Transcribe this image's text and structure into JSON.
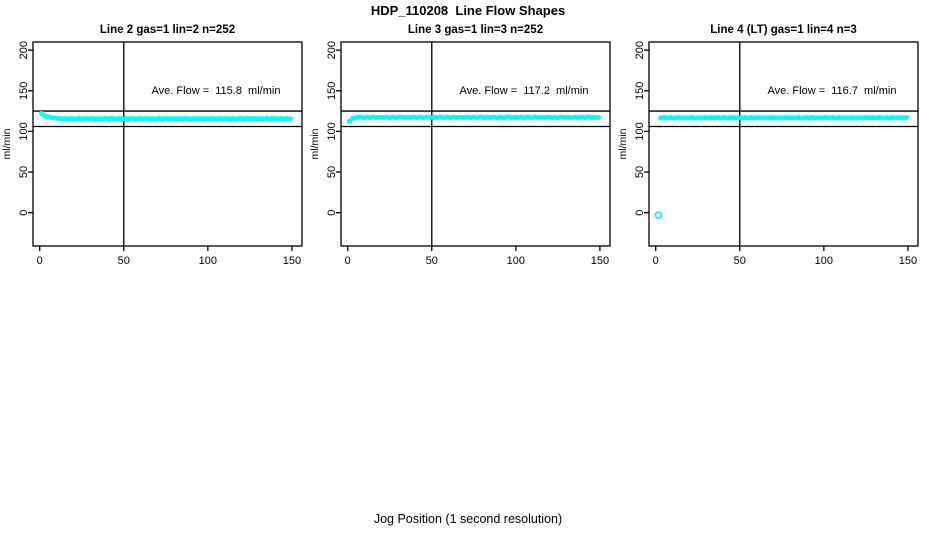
{
  "chart_data": {
    "type": "scatter",
    "title": "HDP_110208  Line Flow Shapes",
    "xlabel": "Jog Position (1 second resolution)",
    "ylabel": "ml/min",
    "x_ticks": [
      0,
      50,
      100,
      150
    ],
    "y_ticks": [
      0,
      50,
      100,
      150,
      200
    ],
    "xlim": [
      -4,
      156
    ],
    "ylim": [
      -41,
      210
    ],
    "grid": false,
    "point_color": "#00FFFF",
    "line_color": "#000000",
    "ref_lines": {
      "vertical_x": 50,
      "horizontal_upper": 125,
      "horizontal_lower": 106
    },
    "panels": [
      {
        "title": "Line 2 gas=1 lin=2 n=252",
        "n": 252,
        "ave_flow": 115.8,
        "annotation": "Ave. Flow =  115.8  ml/min",
        "series": {
          "x_start": 1,
          "x_step": 2,
          "y": [
            122.0,
            119.2,
            117.8,
            116.9,
            116.4,
            116.0,
            115.6,
            115.9,
            115.3,
            115.8,
            115.5,
            116.1,
            115.4,
            116.0,
            115.6,
            115.9,
            115.3,
            115.8,
            115.5,
            116.1,
            115.4,
            116.0,
            115.6,
            115.9,
            115.3,
            115.8,
            115.5,
            116.1,
            115.4,
            116.0,
            115.6,
            115.9,
            115.3,
            115.8,
            115.5,
            116.1,
            115.4,
            116.0,
            115.6,
            115.9,
            115.3,
            115.8,
            115.5,
            116.1,
            115.4,
            116.0,
            115.6,
            115.9,
            115.3,
            115.8,
            115.5,
            116.1,
            115.4,
            116.0,
            115.6,
            115.9,
            115.3,
            115.8,
            115.5,
            116.1,
            115.4,
            116.0,
            115.6,
            115.9,
            115.3,
            115.8,
            115.5,
            116.1,
            115.4,
            116.0,
            115.6,
            115.9,
            115.3,
            115.8,
            115.5
          ]
        }
      },
      {
        "title": "Line 3 gas=1 lin=3 n=252",
        "n": 252,
        "ave_flow": 117.2,
        "annotation": "Ave. Flow =  117.2  ml/min",
        "series": {
          "x_start": 1,
          "x_step": 2,
          "y": [
            112.5,
            116.2,
            117.0,
            117.5,
            116.8,
            117.4,
            116.9,
            117.6,
            117.1,
            117.3,
            117.0,
            117.5,
            116.8,
            117.4,
            116.9,
            117.6,
            117.1,
            117.3,
            117.0,
            117.5,
            116.8,
            117.4,
            116.9,
            117.6,
            117.1,
            117.3,
            117.0,
            117.5,
            116.8,
            117.4,
            116.9,
            117.6,
            117.1,
            117.3,
            117.0,
            117.5,
            116.8,
            117.4,
            116.9,
            117.6,
            117.1,
            117.3,
            117.0,
            117.5,
            116.8,
            117.4,
            116.9,
            117.6,
            117.1,
            117.3,
            117.0,
            117.5,
            116.8,
            117.4,
            116.9,
            117.6,
            117.1,
            117.3,
            117.0,
            117.5,
            116.8,
            117.4,
            116.9,
            117.6,
            117.1,
            117.3,
            117.0,
            117.5,
            116.8,
            117.4,
            116.9,
            117.6,
            117.1,
            117.3,
            117.0
          ]
        }
      },
      {
        "title": "Line 4 (LT) gas=1 lin=4 n=3",
        "n": 3,
        "ave_flow": 116.7,
        "annotation": "Ave. Flow =  116.7  ml/min",
        "outlier": {
          "x": 1.5,
          "y": -3
        },
        "series": {
          "x_start": 3,
          "x_step": 2,
          "y": [
            116.6,
            117.1,
            116.4,
            117.0,
            116.5,
            117.2,
            116.7,
            116.9,
            116.6,
            117.1,
            116.4,
            117.0,
            116.5,
            117.2,
            116.7,
            116.9,
            116.6,
            117.1,
            116.4,
            117.0,
            116.5,
            117.2,
            116.7,
            116.9,
            116.6,
            117.1,
            116.4,
            117.0,
            116.5,
            117.2,
            116.7,
            116.9,
            116.6,
            117.1,
            116.4,
            117.0,
            116.5,
            117.2,
            116.7,
            116.9,
            116.6,
            117.1,
            116.4,
            117.0,
            116.5,
            117.2,
            116.7,
            116.9,
            116.6,
            117.1,
            116.4,
            117.0,
            116.5,
            117.2,
            116.7,
            116.9,
            116.6,
            117.1,
            116.4,
            117.0,
            116.5,
            117.2,
            116.7,
            116.9,
            116.6,
            117.1,
            116.4,
            117.0,
            116.5,
            117.2,
            116.7,
            116.9,
            116.6,
            117.1
          ]
        }
      }
    ]
  }
}
